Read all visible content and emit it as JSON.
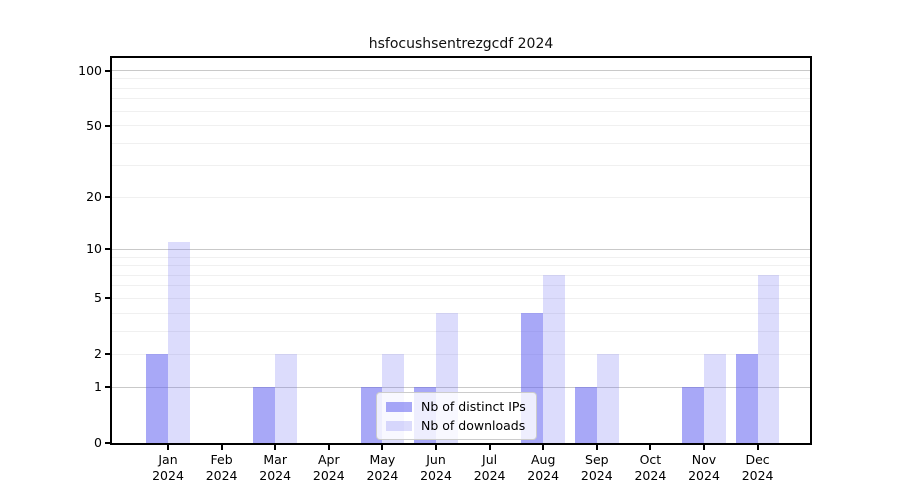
{
  "chart_data": {
    "type": "bar",
    "title": "hsfocushsentrezgcdf 2024",
    "categories": [
      "Jan",
      "Feb",
      "Mar",
      "Apr",
      "May",
      "Jun",
      "Jul",
      "Aug",
      "Sep",
      "Oct",
      "Nov",
      "Dec"
    ],
    "year": "2024",
    "series": [
      {
        "name": "Nb of distinct IPs",
        "color": "rgba(96,96,240,0.55)",
        "values": [
          2,
          0,
          1,
          0,
          1,
          1,
          0,
          4,
          1,
          0,
          1,
          2
        ]
      },
      {
        "name": "Nb of downloads",
        "color": "rgba(96,96,240,0.22)",
        "values": [
          11,
          0,
          2,
          0,
          2,
          4,
          0,
          7,
          2,
          0,
          2,
          7
        ]
      }
    ],
    "xlabel": "",
    "ylabel": "",
    "yscale": "log1p",
    "ylim": [
      0,
      117
    ],
    "y_ticks": [
      0,
      1,
      2,
      5,
      10,
      20,
      50,
      100
    ],
    "y_major_gridlines": [
      1,
      10,
      100
    ],
    "y_minor_gridlines": [
      2,
      3,
      4,
      5,
      6,
      7,
      8,
      9,
      20,
      30,
      40,
      50,
      60,
      70,
      80,
      90
    ],
    "grid": "on",
    "legend_position": "lower center",
    "colors": {
      "major_grid": "#c9c9c9",
      "minor_grid": "#f0f0f0",
      "axis": "#000000",
      "background": "#ffffff"
    }
  }
}
